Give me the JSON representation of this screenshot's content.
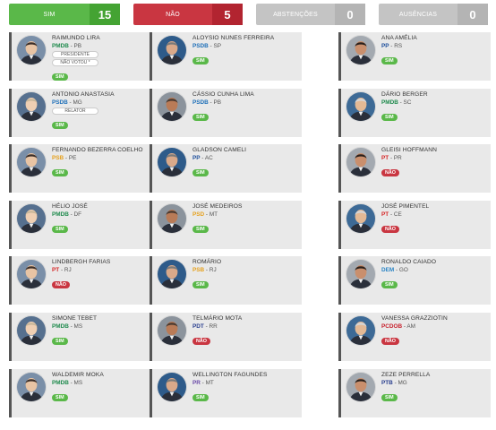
{
  "summary": {
    "sim": {
      "label": "SIM",
      "count": "15"
    },
    "nao": {
      "label": "NÃO",
      "count": "5"
    },
    "abstencoes": {
      "label": "ABSTENÇÕES",
      "count": "0"
    },
    "ausencias": {
      "label": "AUSÊNCIAS",
      "count": "0"
    }
  },
  "colors": {
    "sim": "#5ab849",
    "nao": "#c93641",
    "neutral": "#c4c4c4",
    "party": {
      "PMDB": "#1e8a4c",
      "PSDB": "#1d6fb8",
      "PP": "#1e4f9c",
      "PSB": "#e6a11d",
      "PT": "#d62828",
      "PSD": "#e6a11d",
      "DEM": "#2b84c4",
      "PDT": "#2a3f8f",
      "PCDOB": "#c71f2b",
      "PR": "#6a4aa8",
      "PTB": "#2a3f8f"
    }
  },
  "senators": [
    {
      "name": "RAIMUNDO LIRA",
      "party": "PMDB",
      "state": "PB",
      "vote": "SIM",
      "roles": [
        "PRESIDENTE",
        "NÃO VOTOU *"
      ],
      "avatar_icon": "senator-photo"
    },
    {
      "name": "ALOYSIO NUNES FERREIRA",
      "party": "PSDB",
      "state": "SP",
      "vote": "SIM",
      "roles": [],
      "avatar_icon": "senator-photo"
    },
    {
      "name": "ANA AMÉLIA",
      "party": "PP",
      "state": "RS",
      "vote": "SIM",
      "roles": [],
      "avatar_icon": "senator-photo"
    },
    {
      "name": "ANTONIO ANASTASIA",
      "party": "PSDB",
      "state": "MG",
      "vote": "SIM",
      "roles": [
        "RELATOR"
      ],
      "avatar_icon": "senator-photo"
    },
    {
      "name": "CÁSSIO CUNHA LIMA",
      "party": "PSDB",
      "state": "PB",
      "vote": "SIM",
      "roles": [],
      "avatar_icon": "senator-photo"
    },
    {
      "name": "DÁRIO BERGER",
      "party": "PMDB",
      "state": "SC",
      "vote": "SIM",
      "roles": [],
      "avatar_icon": "senator-photo"
    },
    {
      "name": "FERNANDO BEZERRA COELHO",
      "party": "PSB",
      "state": "PE",
      "vote": "SIM",
      "roles": [],
      "avatar_icon": "senator-photo"
    },
    {
      "name": "GLADSON CAMELI",
      "party": "PP",
      "state": "AC",
      "vote": "SIM",
      "roles": [],
      "avatar_icon": "senator-photo"
    },
    {
      "name": "GLEISI HOFFMANN",
      "party": "PT",
      "state": "PR",
      "vote": "NÃO",
      "roles": [],
      "avatar_icon": "senator-photo"
    },
    {
      "name": "HÉLIO JOSÉ",
      "party": "PMDB",
      "state": "DF",
      "vote": "SIM",
      "roles": [],
      "avatar_icon": "senator-photo"
    },
    {
      "name": "JOSÉ MEDEIROS",
      "party": "PSD",
      "state": "MT",
      "vote": "SIM",
      "roles": [],
      "avatar_icon": "senator-photo"
    },
    {
      "name": "JOSÉ PIMENTEL",
      "party": "PT",
      "state": "CE",
      "vote": "NÃO",
      "roles": [],
      "avatar_icon": "senator-photo"
    },
    {
      "name": "LINDBERGH FARIAS",
      "party": "PT",
      "state": "RJ",
      "vote": "NÃO",
      "roles": [],
      "avatar_icon": "senator-photo"
    },
    {
      "name": "ROMÁRIO",
      "party": "PSB",
      "state": "RJ",
      "vote": "SIM",
      "roles": [],
      "avatar_icon": "senator-photo"
    },
    {
      "name": "RONALDO CAIADO",
      "party": "DEM",
      "state": "GO",
      "vote": "SIM",
      "roles": [],
      "avatar_icon": "senator-photo"
    },
    {
      "name": "SIMONE TEBET",
      "party": "PMDB",
      "state": "MS",
      "vote": "SIM",
      "roles": [],
      "avatar_icon": "senator-photo"
    },
    {
      "name": "TELMÁRIO MOTA",
      "party": "PDT",
      "state": "RR",
      "vote": "NÃO",
      "roles": [],
      "avatar_icon": "senator-photo"
    },
    {
      "name": "VANESSA GRAZZIOTIN",
      "party": "PCDOB",
      "state": "AM",
      "vote": "NÃO",
      "roles": [],
      "avatar_icon": "senator-photo"
    },
    {
      "name": "WALDEMIR MOKA",
      "party": "PMDB",
      "state": "MS",
      "vote": "SIM",
      "roles": [],
      "avatar_icon": "senator-photo"
    },
    {
      "name": "WELLINGTON FAGUNDES",
      "party": "PR",
      "state": "MT",
      "vote": "SIM",
      "roles": [],
      "avatar_icon": "senator-photo"
    },
    {
      "name": "ZEZE PERRELLA",
      "party": "PTB",
      "state": "MG",
      "vote": "SIM",
      "roles": [],
      "avatar_icon": "senator-photo"
    }
  ]
}
